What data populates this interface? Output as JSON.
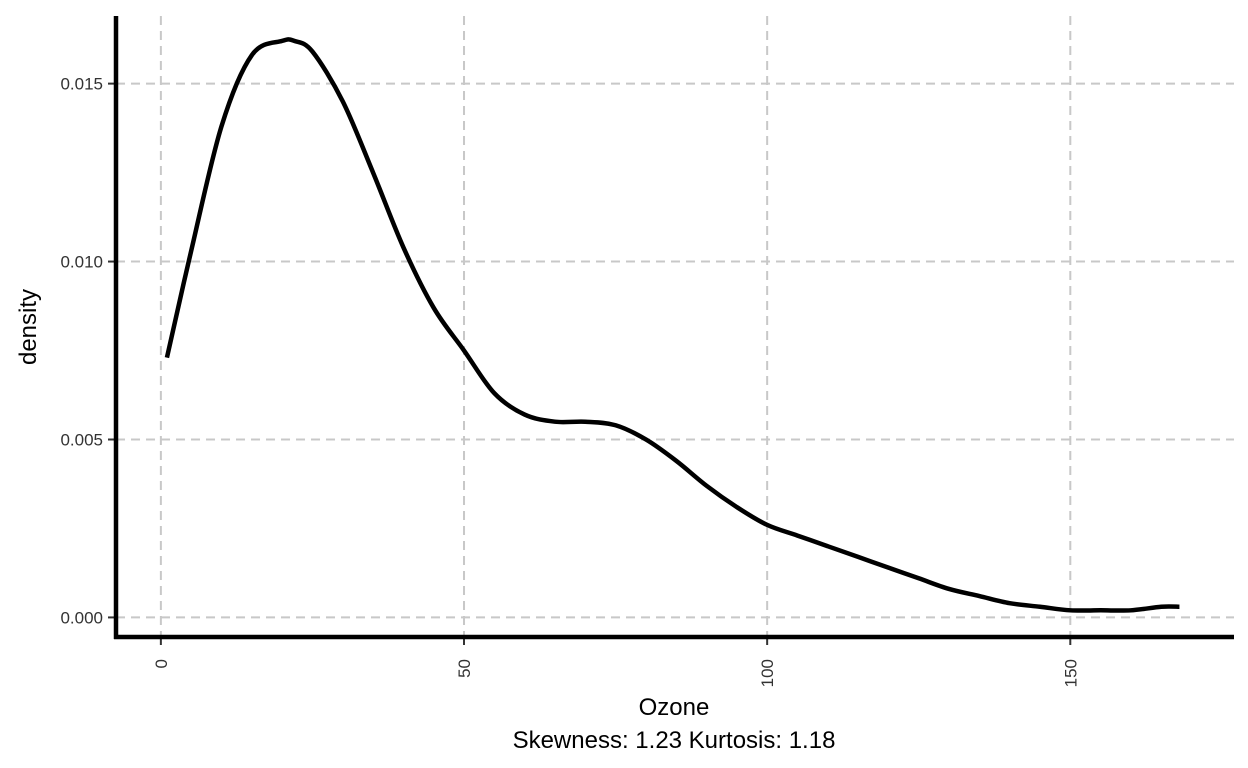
{
  "chart_data": {
    "type": "line",
    "xlabel": "Ozone",
    "subtitle": "Skewness: 1.23 Kurtosis: 1.18",
    "ylabel": "density",
    "xlim": [
      -7.4,
      177
    ],
    "ylim": [
      -0.00055,
      0.0169
    ],
    "x_ticks": [
      0,
      50,
      100,
      150
    ],
    "x_tick_labels": [
      "0",
      "50",
      "100",
      "150"
    ],
    "y_ticks": [
      0.0,
      0.005,
      0.01,
      0.015
    ],
    "y_tick_labels": [
      "0.000",
      "0.005",
      "0.010",
      "0.015"
    ],
    "grid": true,
    "grid_style": "dashed",
    "legend": "none",
    "line_color": "#000000",
    "grid_color": "#c8c8c8",
    "series": [
      {
        "x": [
          1,
          5,
          10,
          15,
          20,
          22,
          25,
          30,
          35,
          40,
          45,
          50,
          55,
          60,
          65,
          70,
          75,
          80,
          85,
          90,
          95,
          100,
          105,
          110,
          115,
          120,
          125,
          130,
          135,
          140,
          145,
          150,
          155,
          160,
          165,
          168
        ],
        "y": [
          0.0073,
          0.0103,
          0.0138,
          0.0158,
          0.0162,
          0.0162,
          0.0159,
          0.0145,
          0.0125,
          0.0104,
          0.0087,
          0.0075,
          0.0063,
          0.0057,
          0.0055,
          0.0055,
          0.0054,
          0.005,
          0.0044,
          0.0037,
          0.0031,
          0.0026,
          0.0023,
          0.002,
          0.0017,
          0.0014,
          0.0011,
          0.0008,
          0.0006,
          0.0004,
          0.0003,
          0.0002,
          0.0002,
          0.0002,
          0.0003,
          0.0003
        ]
      }
    ]
  }
}
